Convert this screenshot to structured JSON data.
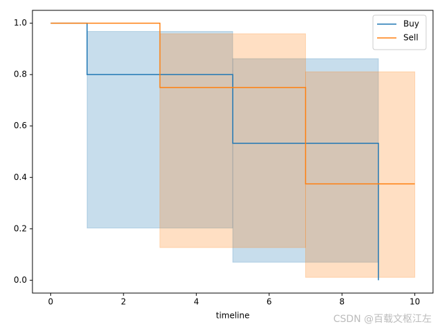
{
  "chart_data": {
    "type": "survival-step",
    "x_label": "timeline",
    "xlim": [
      -0.5,
      10.5
    ],
    "xticks": [
      0,
      2,
      4,
      6,
      8,
      10
    ],
    "ylim": [
      -0.05,
      1.05
    ],
    "yticks": [
      {
        "value": 0,
        "label": "0.0"
      },
      0.2,
      0.4,
      0.6,
      0.8,
      {
        "value": 1,
        "label": "1.0"
      }
    ],
    "grid": false,
    "legend": "upper right",
    "series": [
      {
        "name": "Buy",
        "color": "#1f77b4",
        "x": [
          0,
          1,
          5,
          9
        ],
        "values": [
          1.0,
          0.8,
          0.533,
          0.0
        ],
        "ci_upper": [
          1.0,
          0.968,
          0.862,
          null
        ],
        "ci_lower": [
          1.0,
          0.203,
          0.07,
          null
        ]
      },
      {
        "name": "Sell",
        "color": "#ff7f0e",
        "x": [
          0,
          3,
          7,
          10
        ],
        "values": [
          1.0,
          0.75,
          0.375,
          0.375
        ],
        "ci_upper": [
          1.0,
          0.959,
          0.811,
          0.811
        ],
        "ci_lower": [
          1.0,
          0.127,
          0.011,
          0.011
        ]
      }
    ],
    "watermark": "CSDN @百载文枢江左"
  }
}
